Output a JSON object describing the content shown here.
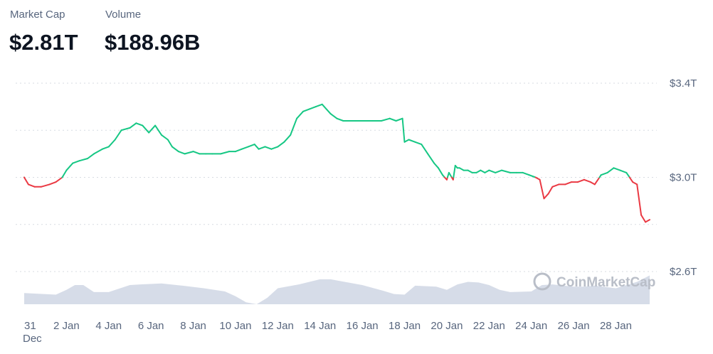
{
  "stats": {
    "market_cap_label": "Market Cap",
    "market_cap_value": "$2.81T",
    "volume_label": "Volume",
    "volume_value": "$188.96B"
  },
  "watermark": "CoinMarketCap",
  "colors": {
    "up": "#16c784",
    "down": "#ea3943",
    "grid": "#d7dbe2",
    "volume": "#cfd6e4",
    "text": "#58667e",
    "title": "#0d1421"
  },
  "chart_data": {
    "type": "line",
    "title": "",
    "xlabel": "",
    "ylabel": "",
    "x_range_days": [
      0,
      29.6
    ],
    "ylim": [
      2.5,
      3.5
    ],
    "y_unit": "T",
    "y_ticks": [
      {
        "value": 3.4,
        "label": "$3.4T"
      },
      {
        "value": 3.0,
        "label": "$3.0T"
      },
      {
        "value": 2.6,
        "label": "$2.6T"
      }
    ],
    "grid_values": [
      3.4,
      3.2,
      3.0,
      2.8,
      2.6
    ],
    "x_ticks": [
      {
        "day": 0,
        "label": "31",
        "sublabel": "Dec"
      },
      {
        "day": 2,
        "label": "2 Jan"
      },
      {
        "day": 4,
        "label": "4 Jan"
      },
      {
        "day": 6,
        "label": "6 Jan"
      },
      {
        "day": 8,
        "label": "8 Jan"
      },
      {
        "day": 10,
        "label": "10 Jan"
      },
      {
        "day": 12,
        "label": "12 Jan"
      },
      {
        "day": 14,
        "label": "14 Jan"
      },
      {
        "day": 16,
        "label": "16 Jan"
      },
      {
        "day": 18,
        "label": "18 Jan"
      },
      {
        "day": 20,
        "label": "20 Jan"
      },
      {
        "day": 22,
        "label": "22 Jan"
      },
      {
        "day": 24,
        "label": "24 Jan"
      },
      {
        "day": 26,
        "label": "26 Jan"
      },
      {
        "day": 28,
        "label": "28 Jan"
      }
    ],
    "baseline": 3.0,
    "series": [
      {
        "values_x": [
          0,
          0.2,
          0.5,
          0.8,
          1.2,
          1.5,
          1.8,
          2.0,
          2.3,
          2.6,
          3.0,
          3.3,
          3.7,
          4.0,
          4.3,
          4.6,
          5.0,
          5.3,
          5.6,
          5.9,
          6.2,
          6.5,
          6.8,
          7.0,
          7.3,
          7.6,
          8.0,
          8.3,
          8.6,
          8.9,
          9.3,
          9.7,
          10.0,
          10.3,
          10.6,
          10.9,
          11.1,
          11.4,
          11.7,
          12.0,
          12.3,
          12.6,
          12.9,
          13.2,
          13.5,
          13.8,
          14.1,
          14.5,
          14.8,
          15.1,
          15.4,
          15.7,
          16.1,
          16.5,
          16.9,
          17.3,
          17.6,
          17.9,
          18.0,
          18.2,
          18.5,
          18.8,
          19.1,
          19.4,
          19.6,
          19.8,
          20.0,
          20.1,
          20.3,
          20.4,
          20.5,
          20.6,
          20.8,
          21.0,
          21.2,
          21.4,
          21.6,
          21.8,
          22.0,
          22.3,
          22.6,
          23.0,
          23.3,
          23.6,
          23.9,
          24.2,
          24.4,
          24.6,
          24.8,
          25.0,
          25.3,
          25.6,
          25.9,
          26.2,
          26.5,
          26.8,
          27.0,
          27.3,
          27.6,
          27.9,
          28.2,
          28.5,
          28.8,
          29.0,
          29.2,
          29.4,
          29.6
        ],
        "values_y": [
          3.0,
          2.97,
          2.96,
          2.96,
          2.97,
          2.98,
          3.0,
          3.03,
          3.06,
          3.07,
          3.08,
          3.1,
          3.12,
          3.13,
          3.16,
          3.2,
          3.21,
          3.23,
          3.22,
          3.19,
          3.22,
          3.18,
          3.16,
          3.13,
          3.11,
          3.1,
          3.11,
          3.1,
          3.1,
          3.1,
          3.1,
          3.11,
          3.11,
          3.12,
          3.13,
          3.14,
          3.12,
          3.13,
          3.12,
          3.13,
          3.15,
          3.18,
          3.25,
          3.28,
          3.29,
          3.3,
          3.31,
          3.27,
          3.25,
          3.24,
          3.24,
          3.24,
          3.24,
          3.24,
          3.24,
          3.25,
          3.24,
          3.25,
          3.15,
          3.16,
          3.15,
          3.14,
          3.1,
          3.06,
          3.04,
          3.01,
          2.99,
          3.02,
          2.99,
          3.05,
          3.04,
          3.04,
          3.03,
          3.03,
          3.02,
          3.02,
          3.03,
          3.02,
          3.03,
          3.02,
          3.03,
          3.02,
          3.02,
          3.02,
          3.01,
          3.0,
          2.99,
          2.91,
          2.93,
          2.96,
          2.97,
          2.97,
          2.98,
          2.98,
          2.99,
          2.98,
          2.97,
          3.01,
          3.02,
          3.04,
          3.03,
          3.02,
          2.98,
          2.97,
          2.84,
          2.81,
          2.82
        ]
      }
    ],
    "volume_series": {
      "unit": "relative",
      "values_x": [
        0,
        1.5,
        2.0,
        2.4,
        2.8,
        3.3,
        4.0,
        5.0,
        5.5,
        6.5,
        7.5,
        8.5,
        9.5,
        10.0,
        10.5,
        11.0,
        11.5,
        12.0,
        13.0,
        13.5,
        14.0,
        14.5,
        15.0,
        16.0,
        17.0,
        17.5,
        18.0,
        18.5,
        19.5,
        20.0,
        20.5,
        21.0,
        21.5,
        22.0,
        22.5,
        23.0,
        24.0,
        24.5,
        25.0,
        26.0,
        26.5,
        27.0,
        28.0,
        29.0,
        29.6
      ],
      "values_y": [
        0.35,
        0.3,
        0.45,
        0.6,
        0.6,
        0.38,
        0.38,
        0.6,
        0.62,
        0.65,
        0.58,
        0.5,
        0.4,
        0.25,
        0.06,
        0.0,
        0.2,
        0.5,
        0.62,
        0.7,
        0.78,
        0.78,
        0.72,
        0.6,
        0.42,
        0.32,
        0.3,
        0.58,
        0.55,
        0.45,
        0.62,
        0.7,
        0.68,
        0.6,
        0.45,
        0.38,
        0.4,
        0.6,
        0.62,
        0.55,
        0.55,
        0.58,
        0.5,
        0.7,
        0.9
      ]
    }
  }
}
